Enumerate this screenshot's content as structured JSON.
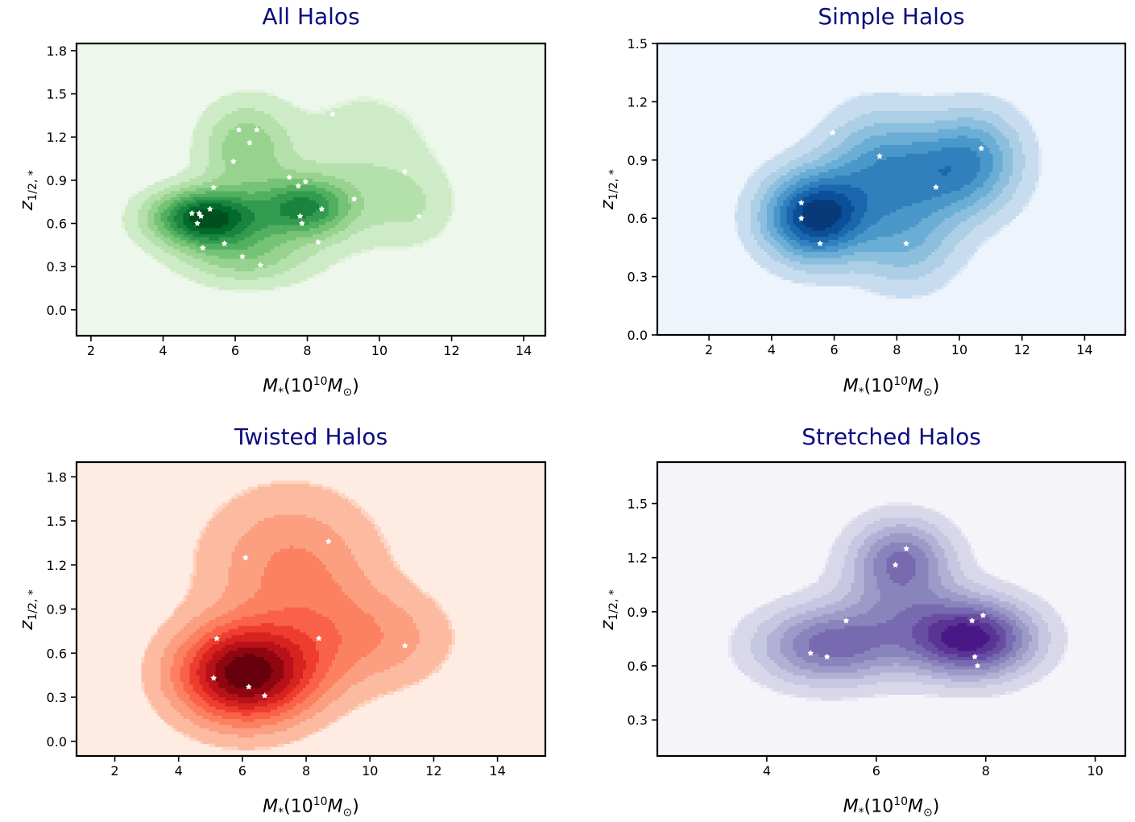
{
  "chart_data": [
    {
      "type": "kde-contour",
      "title": "All Halos",
      "xlabel": "M*(10^10 M⊙)",
      "ylabel": "z1/2,*",
      "xlim": [
        1.6,
        14.6
      ],
      "ylim": [
        -0.18,
        1.85
      ],
      "xticks": [
        2,
        4,
        6,
        8,
        10,
        12,
        14
      ],
      "yticks": [
        0.0,
        0.3,
        0.6,
        0.9,
        1.2,
        1.5,
        1.8
      ],
      "ytick_labels": [
        "0.0",
        "0.3",
        "0.6",
        "0.9",
        "1.2",
        "1.5",
        "1.8"
      ],
      "colormap": "Greens",
      "background": "#eef7ec",
      "colors": [
        "#e1f3dc",
        "#cdebc6",
        "#b4e0ab",
        "#97d38f",
        "#75c375",
        "#52af5f",
        "#339b50",
        "#1a843e",
        "#006b2c",
        "#00501d"
      ],
      "kernels": [
        {
          "x": 5.2,
          "y": 0.64,
          "sx": 1.0,
          "sy": 0.13,
          "w": 1.0
        },
        {
          "x": 7.9,
          "y": 0.71,
          "sx": 0.9,
          "sy": 0.14,
          "w": 0.68
        },
        {
          "x": 6.3,
          "y": 1.12,
          "sx": 0.85,
          "sy": 0.22,
          "w": 0.34
        },
        {
          "x": 6.3,
          "y": 0.38,
          "sx": 1.2,
          "sy": 0.14,
          "w": 0.32
        },
        {
          "x": 9.6,
          "y": 1.0,
          "sx": 1.4,
          "sy": 0.38,
          "w": 0.14
        },
        {
          "x": 10.9,
          "y": 0.72,
          "sx": 0.8,
          "sy": 0.18,
          "w": 0.12
        }
      ],
      "points": [
        [
          4.8,
          0.67
        ],
        [
          5.0,
          0.67
        ],
        [
          5.05,
          0.65
        ],
        [
          5.3,
          0.7
        ],
        [
          4.95,
          0.6
        ],
        [
          5.4,
          0.85
        ],
        [
          5.1,
          0.43
        ],
        [
          5.7,
          0.46
        ],
        [
          6.2,
          0.37
        ],
        [
          6.7,
          0.31
        ],
        [
          6.1,
          1.25
        ],
        [
          6.6,
          1.25
        ],
        [
          6.4,
          1.16
        ],
        [
          5.95,
          1.03
        ],
        [
          8.7,
          1.36
        ],
        [
          7.5,
          0.92
        ],
        [
          7.75,
          0.86
        ],
        [
          7.95,
          0.89
        ],
        [
          7.8,
          0.65
        ],
        [
          7.85,
          0.6
        ],
        [
          8.4,
          0.7
        ],
        [
          8.3,
          0.47
        ],
        [
          9.3,
          0.77
        ],
        [
          10.7,
          0.96
        ],
        [
          11.1,
          0.65
        ]
      ]
    },
    {
      "type": "kde-contour",
      "title": "Simple Halos",
      "xlabel": "M*(10^10 M⊙)",
      "ylabel": "z1/2,*",
      "xlim": [
        0.35,
        15.3
      ],
      "ylim": [
        0.0,
        1.5
      ],
      "xticks": [
        2,
        4,
        6,
        8,
        10,
        12,
        14
      ],
      "yticks": [
        0.0,
        0.3,
        0.6,
        0.9,
        1.2,
        1.5
      ],
      "ytick_labels": [
        "0.0",
        "0.3",
        "0.6",
        "0.9",
        "1.2",
        "1.5"
      ],
      "colormap": "Blues",
      "background": "#edf4fc",
      "colors": [
        "#dce9f6",
        "#c8dcf0",
        "#adcfe6",
        "#8cbfdd",
        "#6aaed6",
        "#4a97c9",
        "#3080bd",
        "#1a67ad",
        "#0a4f97",
        "#083a7a"
      ],
      "kernels": [
        {
          "x": 5.4,
          "y": 0.61,
          "sx": 1.1,
          "sy": 0.15,
          "w": 1.0
        },
        {
          "x": 7.4,
          "y": 0.85,
          "sx": 1.2,
          "sy": 0.2,
          "w": 0.45
        },
        {
          "x": 9.6,
          "y": 0.82,
          "sx": 1.3,
          "sy": 0.17,
          "w": 0.48
        },
        {
          "x": 8.3,
          "y": 0.47,
          "sx": 1.1,
          "sy": 0.16,
          "w": 0.3
        },
        {
          "x": 10.6,
          "y": 0.95,
          "sx": 1.0,
          "sy": 0.16,
          "w": 0.28
        }
      ],
      "points": [
        [
          4.95,
          0.68
        ],
        [
          4.95,
          0.6
        ],
        [
          5.55,
          0.47
        ],
        [
          5.95,
          1.04
        ],
        [
          7.45,
          0.92
        ],
        [
          9.25,
          0.76
        ],
        [
          10.7,
          0.96
        ],
        [
          8.3,
          0.47
        ]
      ]
    },
    {
      "type": "kde-contour",
      "title": "Twisted Halos",
      "xlabel": "M*(10^10 M⊙)",
      "ylabel": "z1/2,*",
      "xlim": [
        0.8,
        15.5
      ],
      "ylim": [
        -0.1,
        1.9
      ],
      "xticks": [
        2,
        4,
        6,
        8,
        10,
        12,
        14
      ],
      "yticks": [
        0.0,
        0.3,
        0.6,
        0.9,
        1.2,
        1.5,
        1.8
      ],
      "ytick_labels": [
        "0.0",
        "0.3",
        "0.6",
        "0.9",
        "1.2",
        "1.5",
        "1.8"
      ],
      "colormap": "Reds",
      "background": "#feebe2",
      "colors": [
        "#fdd3c0",
        "#fcbba1",
        "#fc9e80",
        "#fb8160",
        "#f96248",
        "#ee3d2f",
        "#d62320",
        "#b91119",
        "#8e0610",
        "#67000d"
      ],
      "kernels": [
        {
          "x": 6.1,
          "y": 0.46,
          "sx": 1.4,
          "sy": 0.22,
          "w": 1.0
        },
        {
          "x": 7.5,
          "y": 1.2,
          "sx": 1.8,
          "sy": 0.34,
          "w": 0.26
        },
        {
          "x": 10.8,
          "y": 0.7,
          "sx": 1.3,
          "sy": 0.22,
          "w": 0.16
        },
        {
          "x": 8.6,
          "y": 0.7,
          "sx": 1.3,
          "sy": 0.26,
          "w": 0.18
        }
      ],
      "points": [
        [
          5.2,
          0.7
        ],
        [
          5.1,
          0.43
        ],
        [
          6.2,
          0.37
        ],
        [
          6.7,
          0.31
        ],
        [
          6.1,
          1.25
        ],
        [
          8.7,
          1.36
        ],
        [
          8.4,
          0.7
        ],
        [
          11.1,
          0.65
        ]
      ]
    },
    {
      "type": "kde-contour",
      "title": "Stretched Halos",
      "xlabel": "M*(10^10 M⊙)",
      "ylabel": "z1/2,*",
      "xlim": [
        2.0,
        10.55
      ],
      "ylim": [
        0.1,
        1.73
      ],
      "xticks": [
        4,
        6,
        8,
        10
      ],
      "yticks": [
        0.3,
        0.6,
        0.9,
        1.2,
        1.5
      ],
      "ytick_labels": [
        "0.3",
        "0.6",
        "0.9",
        "1.2",
        "1.5"
      ],
      "colormap": "Purples",
      "background": "#f5f4f9",
      "colors": [
        "#e8e6f2",
        "#d9d8ea",
        "#c6c7e1",
        "#b2b1d5",
        "#9e9ac8",
        "#8a84bd",
        "#786ab0",
        "#684ea2",
        "#5a3394",
        "#4a1886"
      ],
      "kernels": [
        {
          "x": 5.1,
          "y": 0.71,
          "sx": 0.85,
          "sy": 0.14,
          "w": 0.62
        },
        {
          "x": 7.75,
          "y": 0.75,
          "sx": 0.75,
          "sy": 0.14,
          "w": 1.0
        },
        {
          "x": 6.45,
          "y": 1.19,
          "sx": 0.6,
          "sy": 0.15,
          "w": 0.58
        },
        {
          "x": 6.45,
          "y": 0.87,
          "sx": 0.85,
          "sy": 0.18,
          "w": 0.32
        }
      ],
      "points": [
        [
          4.8,
          0.67
        ],
        [
          5.1,
          0.65
        ],
        [
          5.45,
          0.85
        ],
        [
          6.35,
          1.16
        ],
        [
          6.55,
          1.25
        ],
        [
          7.75,
          0.85
        ],
        [
          7.95,
          0.88
        ],
        [
          7.8,
          0.65
        ],
        [
          7.85,
          0.6
        ]
      ]
    }
  ]
}
